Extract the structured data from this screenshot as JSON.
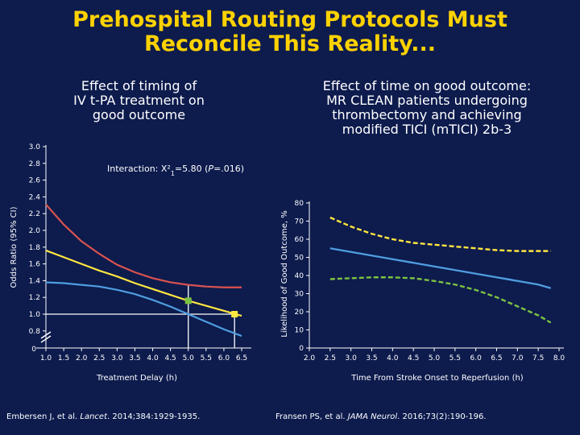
{
  "title_line1": "Prehospital Routing Protocols Must",
  "title_line2": "Reconcile This Reality...",
  "colors": {
    "background": "#0d1b4d",
    "title": "#ffd200",
    "red_curve": "#d9534f",
    "yellow_curve": "#ffe640",
    "blue_curve": "#4f9de0",
    "green_curve": "#7dc242",
    "threshold_line": "#ffffff"
  },
  "left_panel": {
    "title_lines": [
      "Effect of timing of",
      "IV t-PA treatment on",
      "good outcome"
    ],
    "citation_authors": "Embersen J, et al. ",
    "citation_journal": "Lancet",
    "citation_rest": ". 2014;384:1929-1935."
  },
  "right_panel": {
    "title_lines": [
      "Effect of time on good outcome:",
      "MR CLEAN patients undergoing",
      "thrombectomy and achieving",
      "modified TICI (mTICI) 2b-3"
    ],
    "citation_authors": "Fransen PS, et al. ",
    "citation_journal": "JAMA Neurol",
    "citation_rest": ". 2016;73(2):190-196."
  },
  "chart_data": [
    {
      "type": "line",
      "xlabel": "Treatment Delay (h)",
      "ylabel": "Odds Ratio (95% CI)",
      "annotation": {
        "prefix": "Interaction: Χ²",
        "subscript": "1",
        "middle": "=5.80 (",
        "p_label": "P",
        "suffix": "=.016)"
      },
      "xlim": [
        1.0,
        6.5
      ],
      "ylim": [
        0.8,
        3.0
      ],
      "y_break_label": "0",
      "x_ticks": [
        "1.0",
        "1.5",
        "2.0",
        "2.5",
        "3.0",
        "3.5",
        "4.0",
        "4.5",
        "5.0",
        "5.5",
        "6.0",
        "6.5"
      ],
      "y_ticks": [
        "0.8",
        "1.0",
        "1.2",
        "1.4",
        "1.6",
        "1.8",
        "2.0",
        "2.2",
        "2.4",
        "2.6",
        "2.8",
        "3.0"
      ],
      "series": [
        {
          "name": "upper_ci",
          "color": "#d9534f",
          "x": [
            1.0,
            1.5,
            2.0,
            2.5,
            3.0,
            3.5,
            4.0,
            4.5,
            5.0,
            5.5,
            6.0,
            6.5
          ],
          "y": [
            2.31,
            2.07,
            1.87,
            1.72,
            1.59,
            1.5,
            1.43,
            1.38,
            1.35,
            1.33,
            1.32,
            1.32
          ]
        },
        {
          "name": "odds_ratio",
          "color": "#ffe640",
          "x": [
            1.0,
            1.5,
            2.0,
            2.5,
            3.0,
            3.5,
            4.0,
            4.5,
            5.0,
            5.5,
            6.0,
            6.5
          ],
          "y": [
            1.76,
            1.68,
            1.6,
            1.52,
            1.45,
            1.37,
            1.3,
            1.23,
            1.16,
            1.1,
            1.04,
            0.98
          ]
        },
        {
          "name": "lower_ci",
          "color": "#4f9de0",
          "x": [
            1.0,
            1.5,
            2.0,
            2.5,
            3.0,
            3.5,
            4.0,
            4.5,
            5.0,
            5.5,
            6.0,
            6.5
          ],
          "y": [
            1.38,
            1.37,
            1.35,
            1.33,
            1.29,
            1.24,
            1.17,
            1.09,
            1.0,
            0.91,
            0.82,
            0.74
          ]
        }
      ],
      "threshold_vline_x": 5.0,
      "threshold_hline_y": 1.0,
      "markers": [
        {
          "x": 5.0,
          "y": 1.16,
          "color": "#7dc242"
        },
        {
          "x": 6.3,
          "y": 1.0,
          "color": "#ffe640"
        }
      ]
    },
    {
      "type": "line",
      "xlabel": "Time From Stroke Onset to Reperfusion (h)",
      "ylabel": "Likelihood of Good Outcome, %",
      "xlim": [
        2.0,
        8.0
      ],
      "ylim": [
        0,
        80
      ],
      "x_ticks": [
        "2.0",
        "2.5",
        "3.0",
        "3.5",
        "4.0",
        "4.5",
        "5.0",
        "5.5",
        "6.0",
        "6.5",
        "7.0",
        "7.5",
        "8.0"
      ],
      "y_ticks": [
        "0",
        "10",
        "20",
        "30",
        "40",
        "50",
        "60",
        "70",
        "80"
      ],
      "series": [
        {
          "name": "upper_ci",
          "style": "dashed",
          "color": "#ffe640",
          "x": [
            2.5,
            3.0,
            3.5,
            4.0,
            4.5,
            5.0,
            5.5,
            6.0,
            6.5,
            7.0,
            7.5,
            7.8
          ],
          "y": [
            72,
            67,
            63,
            60,
            58,
            57,
            56,
            55,
            54,
            53.5,
            53.5,
            53.5
          ]
        },
        {
          "name": "estimate",
          "style": "solid",
          "color": "#4f9de0",
          "x": [
            2.5,
            3.0,
            3.5,
            4.0,
            4.5,
            5.0,
            5.5,
            6.0,
            6.5,
            7.0,
            7.5,
            7.8
          ],
          "y": [
            55,
            53,
            51,
            49,
            47,
            45,
            43,
            41,
            39,
            37,
            35,
            33
          ]
        },
        {
          "name": "lower_ci",
          "style": "dashed",
          "color": "#7dc242",
          "x": [
            2.5,
            3.0,
            3.5,
            4.0,
            4.5,
            5.0,
            5.5,
            6.0,
            6.5,
            7.0,
            7.5,
            7.8
          ],
          "y": [
            38,
            38.5,
            39,
            39,
            38.5,
            37,
            35,
            32,
            28,
            23,
            18,
            14
          ]
        }
      ]
    }
  ]
}
